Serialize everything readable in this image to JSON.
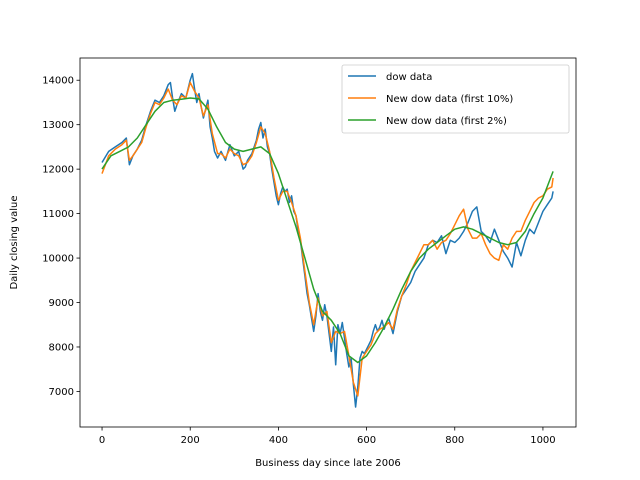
{
  "chart_data": {
    "type": "line",
    "title": "",
    "xlabel": "Business day since late 2006",
    "ylabel": "Daily closing value",
    "xlim": [
      -50,
      1075
    ],
    "ylim": [
      6200,
      14500
    ],
    "xticks": [
      0,
      200,
      400,
      600,
      800,
      1000
    ],
    "yticks": [
      7000,
      8000,
      9000,
      10000,
      11000,
      12000,
      13000,
      14000
    ],
    "grid": false,
    "legend_position": "top-right",
    "series": [
      {
        "name": "dow data",
        "color": "#1f77b4",
        "x": [
          0,
          15,
          30,
          45,
          55,
          62,
          70,
          80,
          90,
          100,
          110,
          120,
          130,
          140,
          150,
          155,
          160,
          165,
          170,
          180,
          190,
          200,
          205,
          210,
          215,
          220,
          225,
          230,
          240,
          245,
          250,
          255,
          262,
          270,
          280,
          290,
          300,
          310,
          320,
          325,
          330,
          340,
          350,
          355,
          360,
          365,
          370,
          375,
          380,
          385,
          390,
          395,
          400,
          405,
          410,
          415,
          420,
          425,
          430,
          435,
          440,
          445,
          450,
          455,
          460,
          465,
          470,
          475,
          480,
          485,
          490,
          495,
          500,
          505,
          510,
          515,
          520,
          525,
          530,
          535,
          540,
          545,
          550,
          555,
          560,
          565,
          570,
          575,
          580,
          585,
          590,
          595,
          600,
          605,
          610,
          615,
          620,
          625,
          630,
          635,
          640,
          645,
          650,
          660,
          670,
          680,
          690,
          700,
          710,
          720,
          730,
          740,
          750,
          760,
          770,
          780,
          790,
          800,
          810,
          820,
          830,
          840,
          850,
          860,
          870,
          880,
          890,
          900,
          910,
          920,
          930,
          940,
          950,
          960,
          970,
          980,
          990,
          1000,
          1010,
          1020,
          1023
        ],
        "y": [
          12150,
          12400,
          12500,
          12600,
          12700,
          12100,
          12300,
          12450,
          12650,
          13000,
          13300,
          13550,
          13500,
          13650,
          13900,
          13950,
          13600,
          13300,
          13450,
          13700,
          13600,
          14000,
          14150,
          13800,
          13500,
          13700,
          13400,
          13150,
          13550,
          12950,
          12700,
          12400,
          12250,
          12400,
          12200,
          12550,
          12300,
          12400,
          12000,
          12050,
          12200,
          12350,
          12650,
          12900,
          13050,
          12700,
          12900,
          12500,
          12350,
          12000,
          11700,
          11400,
          11200,
          11450,
          11600,
          11500,
          11550,
          11250,
          11400,
          11050,
          10950,
          10600,
          10400,
          10000,
          9600,
          9200,
          8950,
          8650,
          8350,
          8700,
          9200,
          8800,
          8600,
          8950,
          8700,
          8300,
          7900,
          8450,
          7600,
          8500,
          8300,
          8550,
          8200,
          7850,
          7550,
          7750,
          7150,
          6650,
          7100,
          7750,
          7900,
          7850,
          7950,
          8050,
          8150,
          8350,
          8500,
          8350,
          8450,
          8600,
          8400,
          8550,
          8650,
          8300,
          8800,
          9150,
          9300,
          9450,
          9700,
          9850,
          10000,
          10300,
          10400,
          10350,
          10500,
          10100,
          10400,
          10350,
          10450,
          10600,
          10800,
          11050,
          11150,
          10600,
          10500,
          10350,
          10650,
          10400,
          10150,
          10000,
          9800,
          10350,
          10050,
          10400,
          10650,
          10550,
          10800,
          11050,
          11200,
          11350,
          11500
        ]
      },
      {
        "name": "New dow data (first 10%)",
        "color": "#ff7f0e",
        "x": [
          0,
          15,
          30,
          45,
          55,
          62,
          70,
          80,
          90,
          100,
          110,
          120,
          130,
          140,
          150,
          160,
          170,
          180,
          190,
          200,
          210,
          220,
          230,
          240,
          250,
          262,
          270,
          280,
          290,
          300,
          310,
          320,
          330,
          340,
          350,
          360,
          370,
          380,
          390,
          400,
          410,
          420,
          430,
          440,
          450,
          460,
          470,
          480,
          490,
          500,
          510,
          520,
          530,
          540,
          550,
          560,
          570,
          580,
          590,
          600,
          610,
          620,
          630,
          640,
          650,
          660,
          670,
          680,
          690,
          700,
          710,
          720,
          730,
          740,
          750,
          760,
          770,
          780,
          790,
          800,
          810,
          820,
          830,
          840,
          850,
          860,
          870,
          880,
          890,
          900,
          910,
          920,
          930,
          940,
          950,
          960,
          970,
          980,
          990,
          1000,
          1010,
          1020,
          1023
        ],
        "y": [
          11900,
          12300,
          12450,
          12550,
          12650,
          12200,
          12300,
          12450,
          12600,
          12950,
          13250,
          13500,
          13450,
          13600,
          13800,
          13550,
          13450,
          13650,
          13600,
          13950,
          13750,
          13600,
          13200,
          13450,
          12800,
          12350,
          12350,
          12250,
          12450,
          12350,
          12300,
          12100,
          12150,
          12300,
          12600,
          12950,
          12800,
          12400,
          11800,
          11300,
          11500,
          11500,
          11250,
          10950,
          10450,
          9700,
          9000,
          8500,
          9100,
          8700,
          8800,
          8100,
          8350,
          8300,
          8350,
          7800,
          7200,
          6900,
          7750,
          7900,
          8050,
          8300,
          8400,
          8450,
          8550,
          8400,
          8850,
          9150,
          9400,
          9700,
          9900,
          10100,
          10300,
          10300,
          10400,
          10200,
          10350,
          10400,
          10550,
          10750,
          10950,
          11100,
          10650,
          10450,
          10450,
          10550,
          10300,
          10100,
          10000,
          9950,
          10300,
          10200,
          10450,
          10600,
          10600,
          10850,
          11050,
          11250,
          11350,
          11400,
          11550,
          11600,
          11800
        ]
      },
      {
        "name": "New dow data (first 2%)",
        "color": "#2ca02c",
        "x": [
          0,
          20,
          40,
          60,
          80,
          100,
          120,
          140,
          160,
          180,
          200,
          220,
          240,
          260,
          280,
          300,
          320,
          340,
          360,
          380,
          400,
          420,
          440,
          460,
          480,
          500,
          520,
          540,
          560,
          580,
          600,
          620,
          640,
          660,
          680,
          700,
          720,
          740,
          760,
          780,
          800,
          820,
          840,
          860,
          880,
          900,
          920,
          940,
          960,
          980,
          1000,
          1023
        ],
        "y": [
          12000,
          12300,
          12400,
          12500,
          12700,
          13000,
          13300,
          13500,
          13550,
          13570,
          13600,
          13580,
          13350,
          12950,
          12600,
          12450,
          12400,
          12450,
          12500,
          12350,
          11900,
          11300,
          10700,
          10000,
          9300,
          8800,
          8600,
          8300,
          7800,
          7650,
          7800,
          8100,
          8450,
          8850,
          9300,
          9700,
          10000,
          10200,
          10350,
          10500,
          10650,
          10700,
          10650,
          10550,
          10450,
          10350,
          10300,
          10350,
          10600,
          11000,
          11350,
          11950
        ]
      }
    ]
  }
}
